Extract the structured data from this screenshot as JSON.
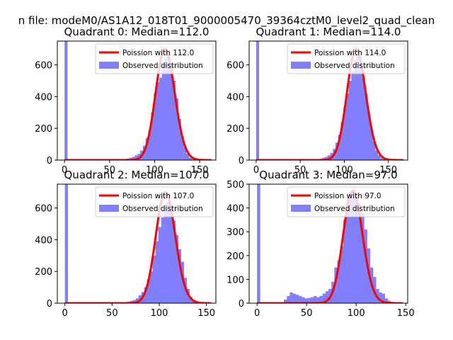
{
  "suptitle": "n file: modeM0/AS1A12_018T01_9000005470_39364cztM0_level2_quad_clean",
  "colors": {
    "poisson": "#ff0000",
    "hist": "#8080ff",
    "background": "#ffffff",
    "axis": "#000000"
  },
  "chart_data": [
    {
      "type": "bar",
      "title": "Quadrant 0: Median=112.0",
      "xlim": [
        -8,
        168
      ],
      "ylim": [
        0,
        750
      ],
      "xticks": [
        0,
        50,
        100,
        150
      ],
      "xtick_labels": [
        "0",
        "50",
        "100",
        "150"
      ],
      "yticks": [
        0,
        200,
        400,
        600
      ],
      "ytick_labels": [
        "0",
        "200",
        "400",
        "600"
      ],
      "legend_position": "upper right",
      "series": [
        {
          "name": "Poission with 112.0",
          "kind": "line",
          "mean": 112.0
        },
        {
          "name": "Observed distribution",
          "kind": "histogram",
          "bin_width": 3.3,
          "bins_left": [
            0,
            66,
            69,
            72,
            75,
            78,
            81,
            84,
            87,
            90,
            93,
            96,
            99,
            102,
            105,
            108,
            111,
            114,
            117,
            120,
            123,
            126,
            129,
            132,
            135,
            138,
            141,
            144
          ],
          "values": [
            750,
            5,
            10,
            15,
            20,
            30,
            40,
            60,
            90,
            140,
            190,
            300,
            420,
            490,
            520,
            600,
            640,
            680,
            590,
            500,
            390,
            260,
            150,
            80,
            40,
            15,
            6,
            2
          ]
        }
      ]
    },
    {
      "type": "bar",
      "title": "Quadrant 1: Median=114.0",
      "xlim": [
        -8,
        172
      ],
      "ylim": [
        0,
        750
      ],
      "xticks": [
        0,
        50,
        100,
        150
      ],
      "xtick_labels": [
        "0",
        "50",
        "100",
        "150"
      ],
      "yticks": [
        0,
        200,
        400,
        600
      ],
      "ytick_labels": [
        "0",
        "200",
        "400",
        "600"
      ],
      "legend_position": "upper right",
      "series": [
        {
          "name": "Poission with 114.0",
          "kind": "line",
          "mean": 114.0
        },
        {
          "name": "Observed distribution",
          "kind": "histogram",
          "bin_width": 3.3,
          "bins_left": [
            0,
            69,
            72,
            75,
            78,
            81,
            84,
            87,
            90,
            93,
            96,
            99,
            102,
            105,
            108,
            111,
            114,
            117,
            120,
            123,
            126,
            129,
            132,
            135,
            138,
            141,
            144,
            147
          ],
          "values": [
            750,
            5,
            8,
            15,
            20,
            30,
            45,
            70,
            110,
            160,
            240,
            330,
            420,
            500,
            560,
            630,
            680,
            600,
            520,
            420,
            300,
            200,
            120,
            60,
            30,
            12,
            5,
            2
          ]
        }
      ]
    },
    {
      "type": "bar",
      "title": "Quadrant 2: Median=107.0",
      "xlim": [
        -8,
        160
      ],
      "ylim": [
        0,
        750
      ],
      "xticks": [
        0,
        50,
        100,
        150
      ],
      "xtick_labels": [
        "0",
        "50",
        "100",
        "150"
      ],
      "yticks": [
        0,
        200,
        400,
        600
      ],
      "ytick_labels": [
        "0",
        "200",
        "400",
        "600"
      ],
      "legend_position": "upper right",
      "series": [
        {
          "name": "Poission with 107.0",
          "kind": "line",
          "mean": 107.0
        },
        {
          "name": "Observed distribution",
          "kind": "histogram",
          "bin_width": 3.3,
          "bins_left": [
            0,
            66,
            69,
            72,
            75,
            78,
            81,
            84,
            87,
            90,
            93,
            96,
            99,
            102,
            105,
            108,
            111,
            114,
            117,
            120,
            123,
            126,
            129,
            132,
            135,
            138
          ],
          "values": [
            750,
            10,
            15,
            20,
            30,
            50,
            70,
            100,
            150,
            200,
            300,
            390,
            480,
            540,
            610,
            640,
            600,
            520,
            430,
            340,
            260,
            160,
            90,
            40,
            15,
            5
          ]
        }
      ]
    },
    {
      "type": "bar",
      "title": "Quadrant 3: Median=97.0",
      "xlim": [
        -8,
        152
      ],
      "ylim": [
        0,
        500
      ],
      "xticks": [
        0,
        50,
        100,
        150
      ],
      "xtick_labels": [
        "0",
        "50",
        "100",
        "150"
      ],
      "yticks": [
        0,
        100,
        200,
        300,
        400,
        500
      ],
      "ytick_labels": [
        "0",
        "100",
        "200",
        "300",
        "400",
        "500"
      ],
      "legend_position": "upper right",
      "series": [
        {
          "name": "Poission with 97.0",
          "kind": "line",
          "mean": 97.0
        },
        {
          "name": "Observed distribution",
          "kind": "histogram",
          "bin_width": 3.2,
          "bins_left": [
            0,
            27,
            30,
            33,
            36,
            39,
            42,
            45,
            48,
            51,
            54,
            57,
            60,
            63,
            66,
            69,
            72,
            75,
            78,
            81,
            84,
            87,
            90,
            93,
            96,
            99,
            102,
            105,
            108,
            111,
            114,
            117,
            120,
            123,
            126,
            129,
            132,
            135
          ],
          "values": [
            500,
            15,
            30,
            45,
            40,
            35,
            30,
            25,
            20,
            22,
            25,
            30,
            25,
            30,
            40,
            50,
            60,
            90,
            150,
            180,
            240,
            350,
            440,
            470,
            480,
            460,
            420,
            380,
            310,
            230,
            150,
            110,
            60,
            45,
            40,
            20,
            10,
            5
          ]
        }
      ]
    }
  ]
}
